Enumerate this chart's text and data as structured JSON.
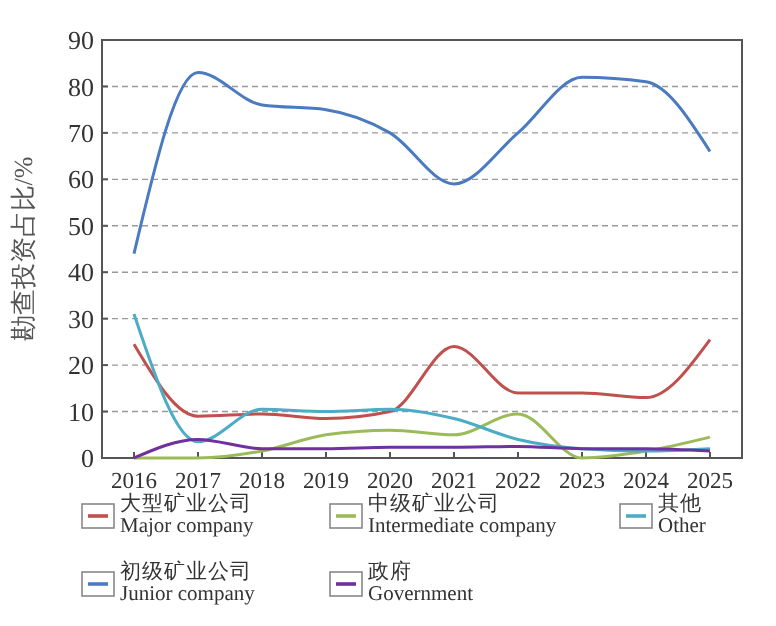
{
  "chart_data": {
    "type": "line",
    "ylabel": "勘查投资占比/%",
    "categories": [
      "2016",
      "2017",
      "2018",
      "2019",
      "2020",
      "2021",
      "2022",
      "2023",
      "2024",
      "2025"
    ],
    "series": [
      {
        "name": "大型矿业公司\nMajor company",
        "color": "#c0504d",
        "values": [
          24.5,
          9,
          9.5,
          8.5,
          10,
          24,
          14,
          14,
          13,
          25.5
        ]
      },
      {
        "name": "中级矿业公司\nIntermediate company",
        "color": "#9bbb59",
        "values": [
          0,
          0,
          1.5,
          5,
          6,
          5,
          9.5,
          0,
          1.5,
          4.5
        ]
      },
      {
        "name": "其他\nOther",
        "color": "#4bacc6",
        "values": [
          31,
          3.5,
          10.5,
          10,
          10.5,
          8.5,
          4,
          2,
          1.5,
          2
        ]
      },
      {
        "name": "初级矿业公司\nJunior company",
        "color": "#4a7ac0",
        "values": [
          44,
          83,
          76,
          75,
          70,
          59,
          70,
          82,
          81,
          66
        ]
      },
      {
        "name": "政府\nGovernment",
        "color": "#7030a0",
        "values": [
          0,
          4,
          2,
          2,
          2.3,
          2.3,
          2.5,
          2,
          2,
          1.5
        ]
      }
    ],
    "ylim": [
      0,
      90
    ],
    "yticks": [
      0,
      10,
      20,
      30,
      40,
      50,
      60,
      70,
      80,
      90
    ],
    "grid": "y",
    "legend": "bottom",
    "marker": "none",
    "line_style": "solid"
  }
}
